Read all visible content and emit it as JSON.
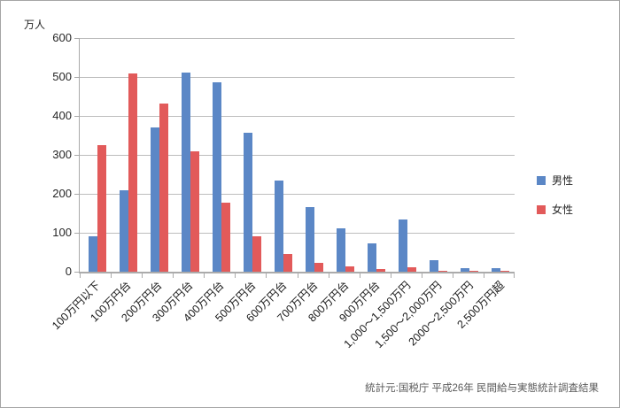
{
  "chart_data": {
    "type": "bar",
    "title": "",
    "unit_label": "万人",
    "categories": [
      "100万円以下",
      "100万円台",
      "200万円台",
      "300万円台",
      "400万円台",
      "500万円台",
      "600万円台",
      "700万円台",
      "800万円台",
      "900万円台",
      "1,000〜1,500万円",
      "1,500〜2,000万円",
      "2000〜2,500万円",
      "2,500万円超"
    ],
    "series": [
      {
        "name": "男性",
        "color": "#5B87C6",
        "values": [
          92,
          210,
          370,
          512,
          487,
          357,
          235,
          167,
          112,
          73,
          135,
          30,
          8,
          10
        ]
      },
      {
        "name": "女性",
        "color": "#E25A5A",
        "values": [
          325,
          510,
          431,
          310,
          177,
          92,
          45,
          23,
          13,
          6,
          12,
          3,
          2,
          3
        ]
      }
    ],
    "ylim": [
      0,
      600
    ],
    "yticks": [
      0,
      100,
      200,
      300,
      400,
      500,
      600
    ],
    "grid": true,
    "legend_position": "right",
    "x_label_rotation": -45,
    "gridline_color": "#bdbdbd",
    "axis_color": "#a9a9a9",
    "text_color": "#262626"
  },
  "footer": {
    "source_text": "統計元:国税庁 平成26年 民間給与実態統計調査結果"
  }
}
